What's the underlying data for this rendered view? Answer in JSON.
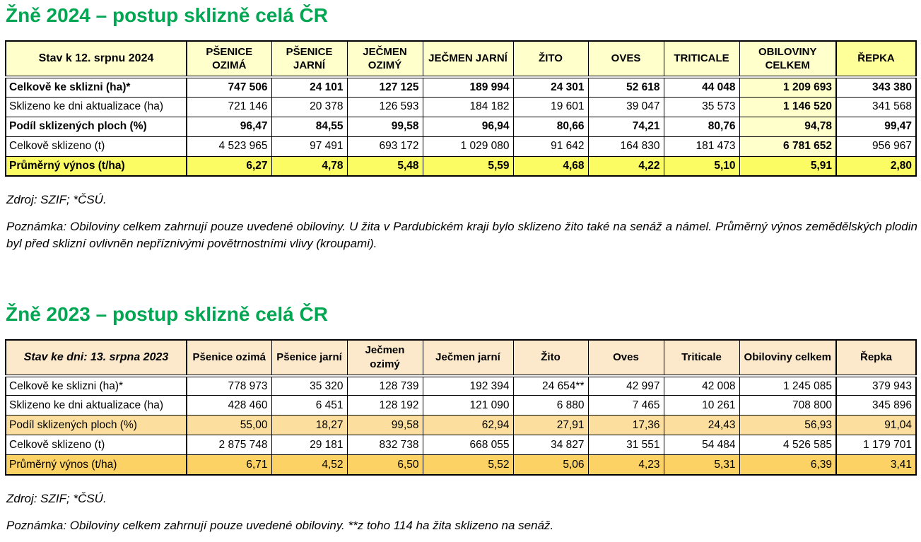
{
  "colors": {
    "title_green": "#00A651",
    "border_black": "#000000",
    "t2024_header_bg": "#FFFFCC",
    "t2024_repka_header_bg": "#FFFF99",
    "t2024_obiloviny_col_bg": "#FFFFCC",
    "t2024_yield_row_bg": "#FBFB63",
    "t2023_header_bg": "#FCE9CC",
    "t2023_share_row_bg": "#FCDF9E",
    "t2023_yield_row_bg": "#FCD264"
  },
  "sections": [
    {
      "title": "Žně 2024 – postup sklizně celá ČR",
      "source": "Zdroj: SZIF; *ČSÚ.",
      "note": "Poznámka: Obiloviny celkem zahrnují pouze uvedené obiloviny. U žita v Pardubickém kraji bylo sklizeno žito také na senáž a námel. Průměrný výnos zemědělských plodin byl před sklizní ovlivněn nepříznivými povětrnostními vlivy (kroupami).",
      "table": {
        "corner_label": "Stav k 12. srpnu 2024",
        "header_bg": "#FFFFCC",
        "last_col_header_bg": "#FFFF99",
        "tint_col": 7,
        "tint_col_bg": "#FFFFCC",
        "bold_col": 7,
        "columns": [
          "PŠENICE OZIMÁ",
          "PŠENICE JARNÍ",
          "JEČMEN OZIMÝ",
          "JEČMEN JARNÍ",
          "ŽITO",
          "OVES",
          "TRITICALE",
          "OBILOVINY CELKEM",
          "ŘEPKA"
        ],
        "rows": [
          {
            "label": "Celkově ke sklizni (ha)*",
            "bold": true,
            "values": [
              "747 506",
              "24 101",
              "127 125",
              "189 994",
              "24 301",
              "52 618",
              "44 048",
              "1 209 693",
              "343 380"
            ]
          },
          {
            "label": "Sklizeno ke dni aktualizace (ha)",
            "bold": false,
            "values": [
              "721 146",
              "20 378",
              "126 593",
              "184 182",
              "19 601",
              "39 047",
              "35 573",
              "1 146 520",
              "341 568"
            ]
          },
          {
            "label": "Podíl sklizených ploch (%)",
            "bold": true,
            "values": [
              "96,47",
              "84,55",
              "99,58",
              "96,94",
              "80,66",
              "74,21",
              "80,76",
              "94,78",
              "99,47"
            ]
          },
          {
            "label": "Celkově sklizeno (t)",
            "bold": false,
            "values": [
              "4 523 965",
              "97 491",
              "693 172",
              "1 029 080",
              "91 642",
              "164 830",
              "181 473",
              "6 781 652",
              "956 967"
            ]
          },
          {
            "label": "Průměrný výnos (t/ha)",
            "bold": true,
            "bg": "#FBFB63",
            "values": [
              "6,27",
              "4,78",
              "5,48",
              "5,59",
              "4,68",
              "4,22",
              "5,10",
              "5,91",
              "2,80"
            ]
          }
        ]
      }
    },
    {
      "title": "Žně 2023 – postup sklizně celá ČR",
      "source": "Zdroj: SZIF; *ČSÚ.",
      "note": "Poznámka: Obiloviny celkem zahrnují pouze uvedené obiloviny. **z toho 114 ha žita sklizeno na senáž.",
      "table": {
        "corner_label": "Stav ke dni: 13. srpna 2023",
        "header_bg": "#FCE9CC",
        "last_col_header_bg": "#FCE9CC",
        "columns": [
          "Pšenice ozimá",
          "Pšenice jarní",
          "Ječmen ozimý",
          "Ječmen jarní",
          "Žito",
          "Oves",
          "Triticale",
          "Obiloviny celkem",
          "Řepka"
        ],
        "rows": [
          {
            "label": "Celkově ke sklizni (ha)*",
            "bold": false,
            "values": [
              "778 973",
              "35 320",
              "128 739",
              "192 394",
              "24 654**",
              "42 997",
              "42 008",
              "1 245 085",
              "379 943"
            ]
          },
          {
            "label": "Sklizeno ke dni aktualizace (ha)",
            "bold": false,
            "values": [
              "428 460",
              "6 451",
              "128 192",
              "121 090",
              "6 880",
              "7 465",
              "10 261",
              "708 800",
              "345 896"
            ]
          },
          {
            "label": "Podíl sklizených ploch (%)",
            "bold": false,
            "bg": "#FCDF9E",
            "values": [
              "55,00",
              "18,27",
              "99,58",
              "62,94",
              "27,91",
              "17,36",
              "24,43",
              "56,93",
              "91,04"
            ]
          },
          {
            "label": "Celkově sklizeno (t)",
            "bold": false,
            "values": [
              "2 875 748",
              "29 181",
              "832 738",
              "668 055",
              "34 827",
              "31 551",
              "54 484",
              "4 526 585",
              "1 179 701"
            ]
          },
          {
            "label": "Průměrný výnos (t/ha)",
            "bold": false,
            "bg": "#FCD264",
            "values": [
              "6,71",
              "4,52",
              "6,50",
              "5,52",
              "5,06",
              "4,23",
              "5,31",
              "6,39",
              "3,41"
            ]
          }
        ]
      }
    }
  ]
}
